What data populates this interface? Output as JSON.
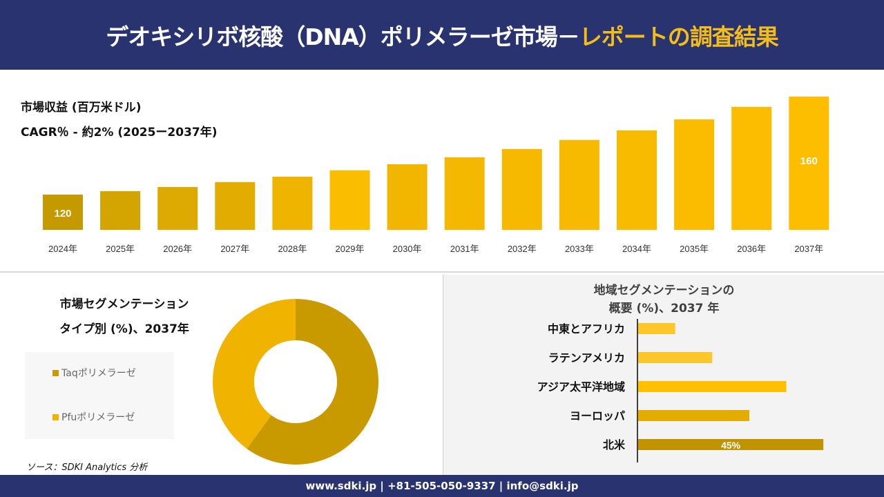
{
  "header": {
    "title_main": "デオキシリボ核酸（DNA）ポリメラーゼ市場－",
    "title_highlight": "レポートの調査結果"
  },
  "revenue": {
    "title": "市場収益 (百万米ドル)",
    "cagr": "CAGR％ - 約2% (2025ー2037年)"
  },
  "segment": {
    "title_line1": "市場セグメンテーション",
    "title_line2": "タイプ別 (%)、2037年",
    "source": "ソース：SDKI Analytics 分析"
  },
  "region": {
    "title_line1": "地域セグメンテーションの",
    "title_line2": "概要 (%)、2037 年"
  },
  "footer": {
    "contact": "www.sdki.jp | +81-505-050-9337 | info@sdki.jp"
  },
  "chart_data": [
    {
      "type": "bar",
      "categories": [
        "2024年",
        "2025年",
        "2026年",
        "2027年",
        "2028年",
        "2029年",
        "2030年",
        "2031年",
        "2032年",
        "2033年",
        "2034年",
        "2035年",
        "2036年",
        "2037年"
      ],
      "values": [
        120,
        121.4,
        123.1,
        125.1,
        127.3,
        129.9,
        132.4,
        135.2,
        138.6,
        142.3,
        146.2,
        150.7,
        155.8,
        160
      ],
      "data_labels": {
        "0": "120",
        "13": "160"
      },
      "grid": false,
      "colors": [
        "#c49a00",
        "#d4a400",
        "#dcaa00",
        "#e2ad00",
        "#eeb400",
        "#fbbd00",
        "#f2b600",
        "#f4b800",
        "#f6b900",
        "#f8ba00",
        "#f9bb00",
        "#fbbc00",
        "#fcbd00",
        "#fdbe00"
      ]
    },
    {
      "type": "pie",
      "donut": true,
      "labels": [
        "Taqポリメラーゼ",
        "Pfuポリメラーゼ"
      ],
      "values": [
        60,
        40
      ],
      "colors": [
        "#c99a00",
        "#f0b400"
      ],
      "legend": "left"
    },
    {
      "type": "bar",
      "orientation": "horizontal",
      "categories": [
        "中東とアフリカ",
        "ラテンアメリカ",
        "アジア太平洋地域",
        "ヨーロッパ",
        "北米"
      ],
      "values": [
        9,
        18,
        36,
        27,
        45
      ],
      "data_labels": {
        "4": "45%"
      },
      "colors": [
        "#fdc72a",
        "#fdc72a",
        "#fdc100",
        "#e5ac00",
        "#c29300"
      ]
    }
  ]
}
